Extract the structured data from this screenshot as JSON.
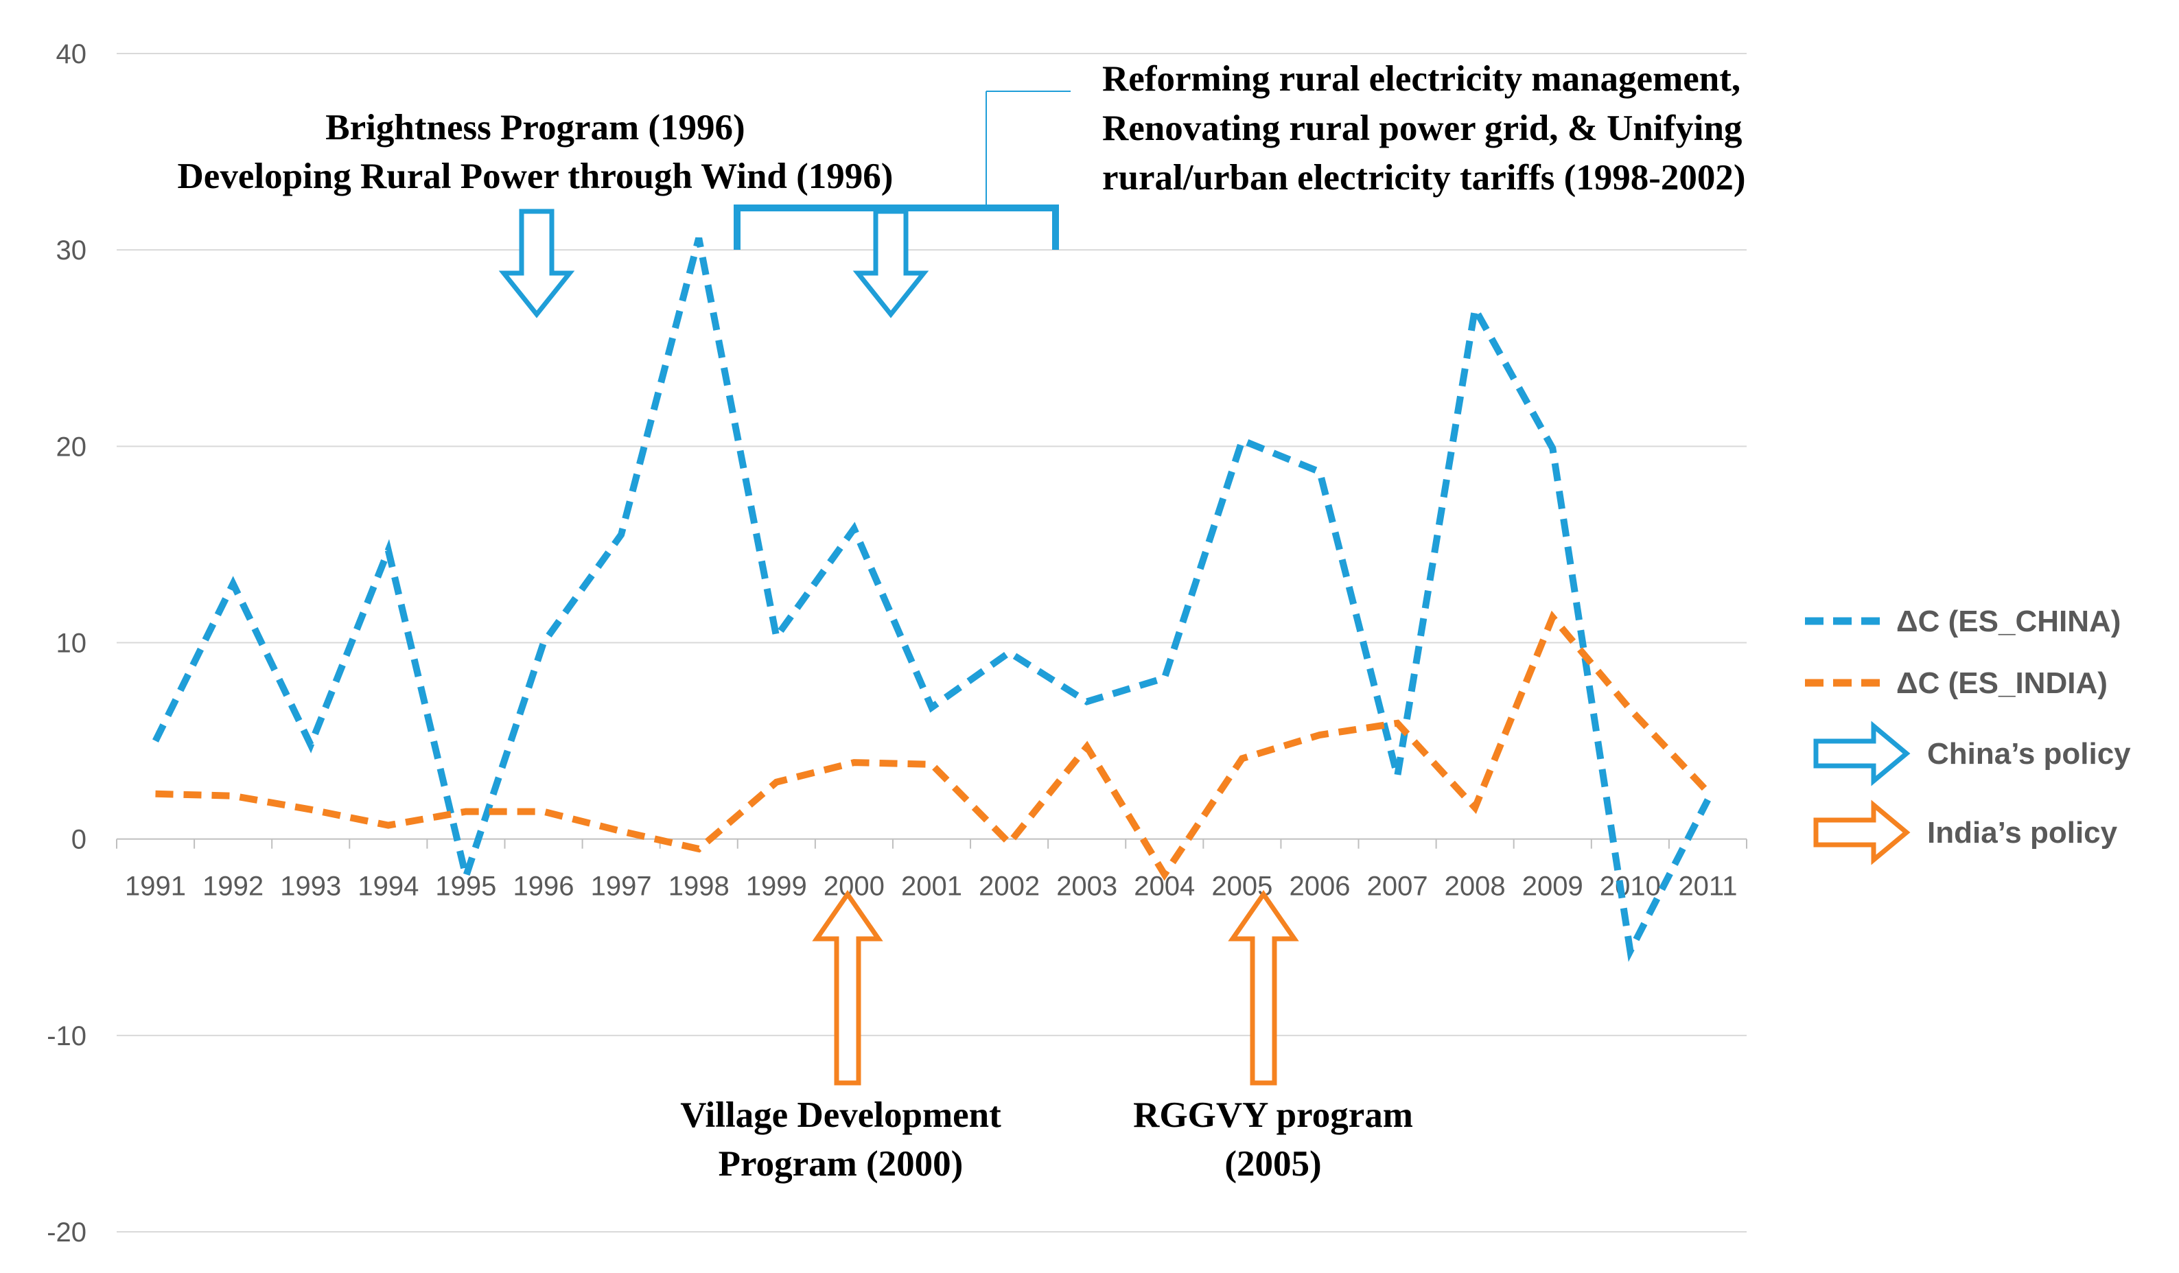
{
  "chart_data": {
    "type": "line",
    "title": "",
    "xlabel": "",
    "ylabel": "",
    "ylim": [
      -20,
      40
    ],
    "yticks": [
      "40",
      "30",
      "20",
      "10",
      "0",
      "-10",
      "-20"
    ],
    "grid": true,
    "categories": [
      "1991",
      "1992",
      "1993",
      "1994",
      "1995",
      "1996",
      "1997",
      "1998",
      "1999",
      "2000",
      "2001",
      "2002",
      "2003",
      "2004",
      "2005",
      "2006",
      "2007",
      "2008",
      "2009",
      "2010",
      "2011"
    ],
    "series": [
      {
        "name": "ΔC (ES_CHINA)",
        "color": "#1F9ED8",
        "values": [
          5.0,
          13.0,
          4.8,
          14.7,
          -1.9,
          10.0,
          15.5,
          30.6,
          10.3,
          15.8,
          6.7,
          9.5,
          7.0,
          8.2,
          20.3,
          18.7,
          3.2,
          27.0,
          19.9,
          -5.7,
          2.0
        ]
      },
      {
        "name": "ΔC (ES_INDIA)",
        "color": "#F58220",
        "values": [
          2.3,
          2.2,
          1.5,
          0.7,
          1.4,
          1.4,
          0.4,
          -0.5,
          2.9,
          3.9,
          3.8,
          -0.2,
          4.7,
          -1.8,
          4.1,
          5.3,
          5.9,
          1.6,
          11.3,
          6.6,
          2.4
        ]
      }
    ],
    "annotations": {
      "china_1996": [
        "Brightness Program (1996)",
        "Developing Rural Power through Wind (1996)"
      ],
      "china_1998_2002": [
        "Reforming rural electricity management,",
        "Renovating rural power grid, & Unifying",
        "rural/urban electricity tariffs (1998-2002)"
      ],
      "india_2000": [
        "Village Development",
        "Program (2000)"
      ],
      "india_2005": [
        "RGGVY program",
        "(2005)"
      ]
    },
    "legend": {
      "placement": "right",
      "china_policy_label": "China’s policy",
      "india_policy_label": "India’s policy",
      "china_policy_color": "#1F9ED8",
      "india_policy_color": "#F58220"
    }
  }
}
